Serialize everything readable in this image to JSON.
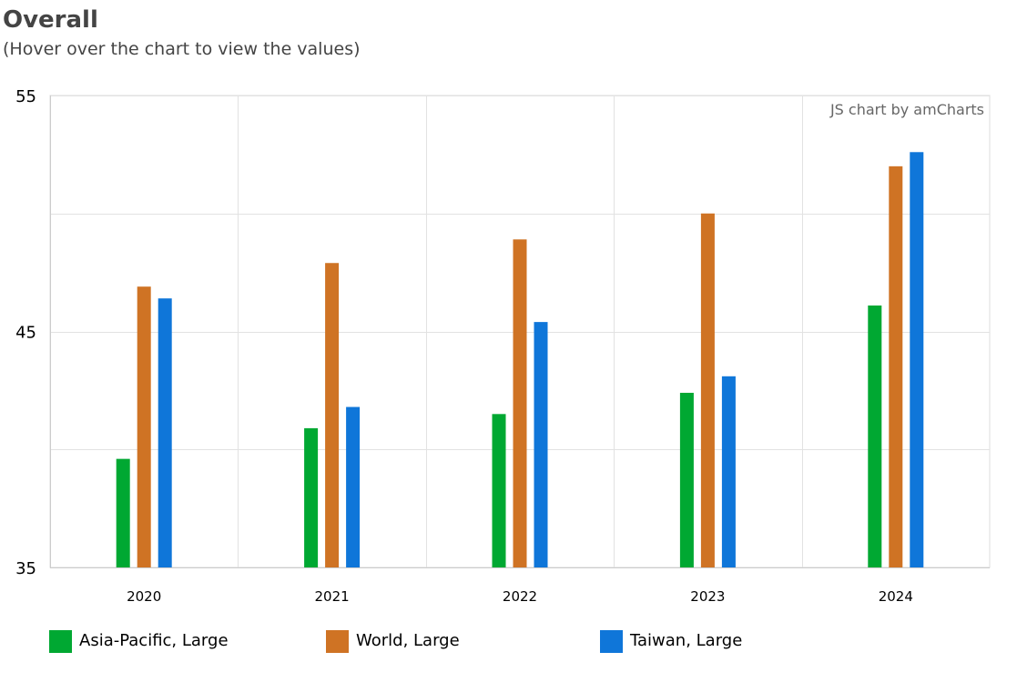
{
  "header": {
    "title": "Overall",
    "subtitle": "(Hover over the chart to view the values)"
  },
  "credit": "JS chart by amCharts",
  "chart_data": {
    "type": "bar",
    "categories": [
      "2020",
      "2021",
      "2022",
      "2023",
      "2024"
    ],
    "series": [
      {
        "name": "Asia-Pacific, Large",
        "color": "#00a832",
        "values": [
          39.6,
          40.9,
          41.5,
          42.4,
          46.1
        ]
      },
      {
        "name": "World, Large",
        "color": "#cf7324",
        "values": [
          46.9,
          47.9,
          48.9,
          50.0,
          52.0
        ]
      },
      {
        "name": "Taiwan, Large",
        "color": "#0f76d9",
        "values": [
          46.4,
          41.8,
          45.4,
          43.1,
          52.6
        ]
      }
    ],
    "ylim": [
      35,
      55
    ],
    "yticks": [
      35,
      45,
      55
    ],
    "ygrid_step": 5,
    "grid": true,
    "legend_position": "bottom"
  }
}
